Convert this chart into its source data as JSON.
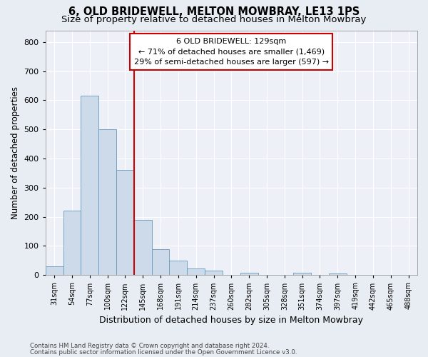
{
  "title1": "6, OLD BRIDEWELL, MELTON MOWBRAY, LE13 1PS",
  "title2": "Size of property relative to detached houses in Melton Mowbray",
  "xlabel": "Distribution of detached houses by size in Melton Mowbray",
  "ylabel": "Number of detached properties",
  "categories": [
    "31sqm",
    "54sqm",
    "77sqm",
    "100sqm",
    "122sqm",
    "145sqm",
    "168sqm",
    "191sqm",
    "214sqm",
    "237sqm",
    "260sqm",
    "282sqm",
    "305sqm",
    "328sqm",
    "351sqm",
    "374sqm",
    "397sqm",
    "419sqm",
    "442sqm",
    "465sqm",
    "488sqm"
  ],
  "values": [
    30,
    220,
    615,
    500,
    360,
    190,
    88,
    50,
    22,
    15,
    0,
    8,
    0,
    0,
    8,
    0,
    5,
    0,
    0,
    0,
    0
  ],
  "bar_color": "#cddaea",
  "bar_edge_color": "#6699bb",
  "vline_color": "#cc0000",
  "vline_pos": 4.5,
  "annotation_line1": "6 OLD BRIDEWELL: 129sqm",
  "annotation_line2": "← 71% of detached houses are smaller (1,469)",
  "annotation_line3": "29% of semi-detached houses are larger (597) →",
  "annotation_box_color": "#ffffff",
  "annotation_box_edge": "#cc0000",
  "ylim": [
    0,
    840
  ],
  "yticks": [
    0,
    100,
    200,
    300,
    400,
    500,
    600,
    700,
    800
  ],
  "footer1": "Contains HM Land Registry data © Crown copyright and database right 2024.",
  "footer2": "Contains public sector information licensed under the Open Government Licence v3.0.",
  "bg_color": "#e8edf3",
  "plot_bg_color": "#edf1f7",
  "grid_color": "#ffffff",
  "title1_fontsize": 10.5,
  "title2_fontsize": 9.5,
  "xlabel_fontsize": 9,
  "ylabel_fontsize": 8.5
}
